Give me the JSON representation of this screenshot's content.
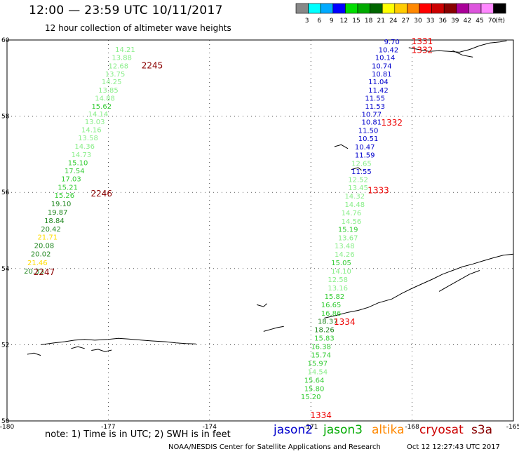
{
  "header": {
    "title": "12:00 — 23:59 UTC 10/11/2017",
    "subtitle": "12 hour collection of altimeter wave heights"
  },
  "colorbar": {
    "unit": "(ft)",
    "stops": [
      {
        "label": "3",
        "color": "#888888"
      },
      {
        "label": "6",
        "color": "#00ffff"
      },
      {
        "label": "9",
        "color": "#00aaff"
      },
      {
        "label": "12",
        "color": "#0000ff"
      },
      {
        "label": "15",
        "color": "#00dd00"
      },
      {
        "label": "18",
        "color": "#00aa00"
      },
      {
        "label": "21",
        "color": "#006600"
      },
      {
        "label": "24",
        "color": "#ffff00"
      },
      {
        "label": "27",
        "color": "#ffcc00"
      },
      {
        "label": "30",
        "color": "#ff8800"
      },
      {
        "label": "33",
        "color": "#ff0000"
      },
      {
        "label": "36",
        "color": "#cc0000"
      },
      {
        "label": "39",
        "color": "#880000"
      },
      {
        "label": "42",
        "color": "#aa0099"
      },
      {
        "label": "45",
        "color": "#dd55dd"
      },
      {
        "label": "70",
        "color": "#ff88ff"
      },
      {
        "label": "",
        "color": "#000000"
      }
    ]
  },
  "map": {
    "lon_range": [
      -180,
      -165
    ],
    "lat_range": [
      50,
      60
    ],
    "lon_ticks": [
      "-180",
      "-177",
      "-174",
      "-171",
      "-168",
      "-165"
    ],
    "lat_ticks": [
      "60",
      "58",
      "56",
      "54",
      "52",
      "50"
    ]
  },
  "tracks": [
    {
      "satellite": "jason3",
      "times": [
        {
          "label": "2245",
          "lon": -175.7,
          "lat": 59.33,
          "color": "#8b0000"
        },
        {
          "label": "2246",
          "lon": -177.2,
          "lat": 55.97,
          "color": "#8b0000"
        },
        {
          "label": "2247",
          "lon": -178.9,
          "lat": 53.9,
          "color": "#8b0000"
        }
      ],
      "points": [
        {
          "value": "14.21",
          "lon": -176.5,
          "lat": 59.76,
          "color": "#88ee88"
        },
        {
          "value": "13.88",
          "lon": -176.6,
          "lat": 59.55,
          "color": "#88ee88"
        },
        {
          "value": "12.68",
          "lon": -176.7,
          "lat": 59.33,
          "color": "#88ee88"
        },
        {
          "value": "13.75",
          "lon": -176.8,
          "lat": 59.12,
          "color": "#88ee88"
        },
        {
          "value": "14.25",
          "lon": -176.9,
          "lat": 58.91,
          "color": "#88ee88"
        },
        {
          "value": "13.85",
          "lon": -177.0,
          "lat": 58.69,
          "color": "#88ee88"
        },
        {
          "value": "14.88",
          "lon": -177.1,
          "lat": 58.48,
          "color": "#88ee88"
        },
        {
          "value": "15.62",
          "lon": -177.2,
          "lat": 58.27,
          "color": "#33cc33"
        },
        {
          "value": "14.14",
          "lon": -177.3,
          "lat": 58.07,
          "color": "#88ee88"
        },
        {
          "value": "13.03",
          "lon": -177.4,
          "lat": 57.86,
          "color": "#88ee88"
        },
        {
          "value": "14.16",
          "lon": -177.5,
          "lat": 57.65,
          "color": "#88ee88"
        },
        {
          "value": "13.58",
          "lon": -177.6,
          "lat": 57.44,
          "color": "#88ee88"
        },
        {
          "value": "14.36",
          "lon": -177.7,
          "lat": 57.22,
          "color": "#88ee88"
        },
        {
          "value": "14.73",
          "lon": -177.8,
          "lat": 57.0,
          "color": "#88ee88"
        },
        {
          "value": "15.10",
          "lon": -177.9,
          "lat": 56.79,
          "color": "#33cc33"
        },
        {
          "value": "17.54",
          "lon": -178.0,
          "lat": 56.57,
          "color": "#33cc33"
        },
        {
          "value": "17.03",
          "lon": -178.1,
          "lat": 56.36,
          "color": "#33cc33"
        },
        {
          "value": "15.21",
          "lon": -178.2,
          "lat": 56.14,
          "color": "#33cc33"
        },
        {
          "value": "15.26",
          "lon": -178.3,
          "lat": 55.93,
          "color": "#33cc33"
        },
        {
          "value": "19.10",
          "lon": -178.4,
          "lat": 55.71,
          "color": "#228822"
        },
        {
          "value": "19.87",
          "lon": -178.5,
          "lat": 55.49,
          "color": "#228822"
        },
        {
          "value": "18.84",
          "lon": -178.6,
          "lat": 55.27,
          "color": "#228822"
        },
        {
          "value": "20.42",
          "lon": -178.7,
          "lat": 55.05,
          "color": "#228822"
        },
        {
          "value": "21.71",
          "lon": -178.8,
          "lat": 54.83,
          "color": "#ffdd00"
        },
        {
          "value": "20.08",
          "lon": -178.9,
          "lat": 54.61,
          "color": "#228822"
        },
        {
          "value": "20.02",
          "lon": -179.0,
          "lat": 54.39,
          "color": "#228822"
        },
        {
          "value": "21.46",
          "lon": -179.1,
          "lat": 54.16,
          "color": "#ffdd00"
        },
        {
          "value": "20.33",
          "lon": -179.2,
          "lat": 53.94,
          "color": "#228822"
        }
      ]
    },
    {
      "satellite": "jason2",
      "times": [
        {
          "label": "1331",
          "lon": -167.7,
          "lat": 59.96,
          "color": "#ee0000"
        },
        {
          "label": "1332",
          "lon": -167.7,
          "lat": 59.73,
          "color": "#ee0000"
        },
        {
          "label": "1332",
          "lon": -168.6,
          "lat": 57.83,
          "color": "#ee0000"
        },
        {
          "label": "1333",
          "lon": -169.0,
          "lat": 56.05,
          "color": "#ee0000"
        },
        {
          "label": "1334",
          "lon": -170.0,
          "lat": 52.6,
          "color": "#ee0000"
        },
        {
          "label": "1334",
          "lon": -170.7,
          "lat": 50.15,
          "color": "#ee0000"
        }
      ],
      "points": [
        {
          "value": "9.70",
          "lon": -168.6,
          "lat": 59.96,
          "color": "#0000cc"
        },
        {
          "value": "10.42",
          "lon": -168.7,
          "lat": 59.75,
          "color": "#0000cc"
        },
        {
          "value": "10.14",
          "lon": -168.8,
          "lat": 59.55,
          "color": "#0000cc"
        },
        {
          "value": "10.74",
          "lon": -168.9,
          "lat": 59.33,
          "color": "#0000cc"
        },
        {
          "value": "10.81",
          "lon": -168.9,
          "lat": 59.12,
          "color": "#0000cc"
        },
        {
          "value": "11.04",
          "lon": -169.0,
          "lat": 58.91,
          "color": "#0000cc"
        },
        {
          "value": "11.42",
          "lon": -169.0,
          "lat": 58.69,
          "color": "#0000cc"
        },
        {
          "value": "11.55",
          "lon": -169.1,
          "lat": 58.48,
          "color": "#0000cc"
        },
        {
          "value": "11.53",
          "lon": -169.1,
          "lat": 58.27,
          "color": "#0000cc"
        },
        {
          "value": "10.77",
          "lon": -169.2,
          "lat": 58.06,
          "color": "#0000cc"
        },
        {
          "value": "10.81",
          "lon": -169.2,
          "lat": 57.85,
          "color": "#0000cc"
        },
        {
          "value": "11.50",
          "lon": -169.3,
          "lat": 57.63,
          "color": "#0000cc"
        },
        {
          "value": "10.51",
          "lon": -169.3,
          "lat": 57.42,
          "color": "#0000cc"
        },
        {
          "value": "10.47",
          "lon": -169.4,
          "lat": 57.2,
          "color": "#0000cc"
        },
        {
          "value": "11.59",
          "lon": -169.4,
          "lat": 56.99,
          "color": "#0000cc"
        },
        {
          "value": "12.65",
          "lon": -169.5,
          "lat": 56.77,
          "color": "#88ee88"
        },
        {
          "value": "11.55",
          "lon": -169.5,
          "lat": 56.56,
          "color": "#0000cc"
        },
        {
          "value": "12.52",
          "lon": -169.6,
          "lat": 56.34,
          "color": "#88ee88"
        },
        {
          "value": "13.45",
          "lon": -169.6,
          "lat": 56.13,
          "color": "#88ee88"
        },
        {
          "value": "14.32",
          "lon": -169.7,
          "lat": 55.91,
          "color": "#88ee88"
        },
        {
          "value": "14.48",
          "lon": -169.7,
          "lat": 55.69,
          "color": "#88ee88"
        },
        {
          "value": "14.76",
          "lon": -169.8,
          "lat": 55.47,
          "color": "#88ee88"
        },
        {
          "value": "14.56",
          "lon": -169.8,
          "lat": 55.25,
          "color": "#88ee88"
        },
        {
          "value": "15.19",
          "lon": -169.9,
          "lat": 55.04,
          "color": "#33cc33"
        },
        {
          "value": "13.67",
          "lon": -169.9,
          "lat": 54.82,
          "color": "#88ee88"
        },
        {
          "value": "13.48",
          "lon": -170.0,
          "lat": 54.6,
          "color": "#88ee88"
        },
        {
          "value": "14.26",
          "lon": -170.0,
          "lat": 54.38,
          "color": "#88ee88"
        },
        {
          "value": "15.05",
          "lon": -170.1,
          "lat": 54.16,
          "color": "#33cc33"
        },
        {
          "value": "14.10",
          "lon": -170.1,
          "lat": 53.94,
          "color": "#88ee88"
        },
        {
          "value": "12.58",
          "lon": -170.2,
          "lat": 53.72,
          "color": "#88ee88"
        },
        {
          "value": "13.16",
          "lon": -170.2,
          "lat": 53.5,
          "color": "#88ee88"
        },
        {
          "value": "15.82",
          "lon": -170.3,
          "lat": 53.28,
          "color": "#33cc33"
        },
        {
          "value": "16.65",
          "lon": -170.4,
          "lat": 53.06,
          "color": "#33cc33"
        },
        {
          "value": "16.86",
          "lon": -170.4,
          "lat": 52.84,
          "color": "#33cc33"
        },
        {
          "value": "18.37",
          "lon": -170.5,
          "lat": 52.62,
          "color": "#228822"
        },
        {
          "value": "18.26",
          "lon": -170.6,
          "lat": 52.4,
          "color": "#228822"
        },
        {
          "value": "15.83",
          "lon": -170.6,
          "lat": 52.18,
          "color": "#33cc33"
        },
        {
          "value": "16.38",
          "lon": -170.7,
          "lat": 51.96,
          "color": "#33cc33"
        },
        {
          "value": "15.74",
          "lon": -170.7,
          "lat": 51.74,
          "color": "#33cc33"
        },
        {
          "value": "15.97",
          "lon": -170.8,
          "lat": 51.52,
          "color": "#33cc33"
        },
        {
          "value": "14.54",
          "lon": -170.8,
          "lat": 51.3,
          "color": "#88ee88"
        },
        {
          "value": "15.64",
          "lon": -170.9,
          "lat": 51.08,
          "color": "#33cc33"
        },
        {
          "value": "15.80",
          "lon": -170.9,
          "lat": 50.86,
          "color": "#33cc33"
        },
        {
          "value": "15.20",
          "lon": -171.0,
          "lat": 50.64,
          "color": "#33cc33"
        }
      ]
    }
  ],
  "footer": {
    "note": "note: 1) Time is in UTC; 2) SWH is in feet",
    "satellites": [
      {
        "label": "jason2",
        "color": "#0000cc"
      },
      {
        "label": "jason3",
        "color": "#00aa00"
      },
      {
        "label": "altika",
        "color": "#ff8800"
      },
      {
        "label": "cryosat",
        "color": "#cc0000"
      },
      {
        "label": "s3a",
        "color": "#880000"
      }
    ],
    "credit": "NOAA/NESDIS Center for Satellite Applications and Research",
    "timestamp": "Oct 12 12:27:43 UTC 2017"
  }
}
